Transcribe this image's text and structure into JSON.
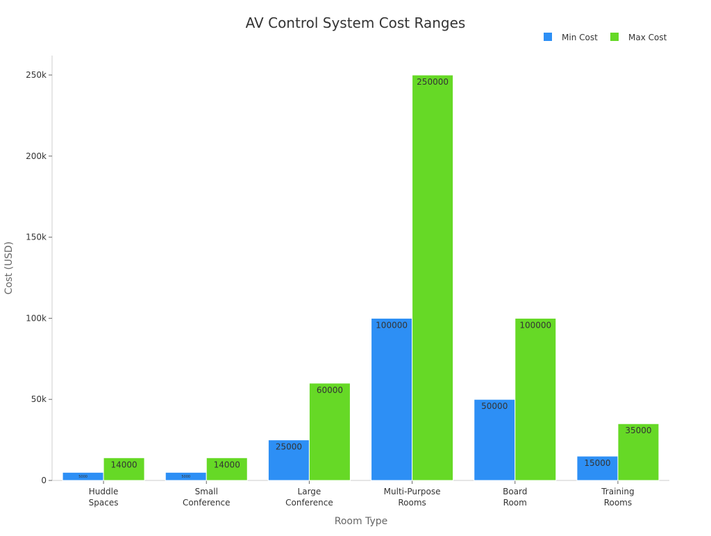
{
  "chart_data": {
    "type": "bar",
    "title": "AV Control System Cost Ranges",
    "xlabel": "Room Type",
    "ylabel": "Cost (USD)",
    "categories": [
      [
        "Huddle",
        "Spaces"
      ],
      [
        "Small",
        "Conference"
      ],
      [
        "Large",
        "Conference"
      ],
      [
        "Multi-Purpose",
        "Rooms"
      ],
      [
        "Board",
        "Room"
      ],
      [
        "Training",
        "Rooms"
      ]
    ],
    "series": [
      {
        "name": "Min Cost",
        "color": "#2d8ff5",
        "values": [
          5000,
          5000,
          25000,
          100000,
          50000,
          15000
        ]
      },
      {
        "name": "Max Cost",
        "color": "#66d926",
        "values": [
          14000,
          14000,
          60000,
          250000,
          100000,
          35000
        ]
      }
    ],
    "ylim": [
      0,
      262000
    ],
    "yticks": [
      0,
      50000,
      100000,
      150000,
      200000,
      250000
    ],
    "ytick_labels": [
      "0",
      "50k",
      "100k",
      "150k",
      "200k",
      "250k"
    ],
    "grid": false,
    "legend": "top-right"
  }
}
